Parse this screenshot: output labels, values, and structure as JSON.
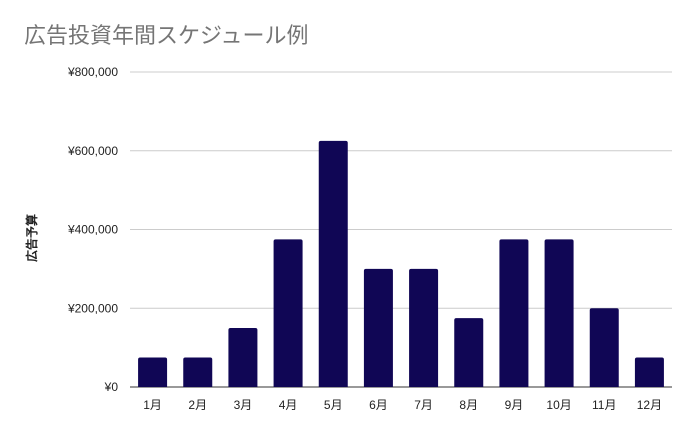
{
  "chart_data": {
    "type": "bar",
    "title": "広告投資年間スケジュール例",
    "xlabel": "",
    "ylabel": "広告予算",
    "categories": [
      "1月",
      "2月",
      "3月",
      "4月",
      "5月",
      "6月",
      "7月",
      "8月",
      "9月",
      "10月",
      "11月",
      "12月"
    ],
    "values": [
      75000,
      75000,
      150000,
      375000,
      625000,
      300000,
      300000,
      175000,
      375000,
      375000,
      200000,
      75000
    ],
    "ylim": [
      0,
      800000
    ],
    "yticks": [
      {
        "value": 0,
        "label": "¥0"
      },
      {
        "value": 200000,
        "label": "¥200,000"
      },
      {
        "value": 400000,
        "label": "¥400,000"
      },
      {
        "value": 600000,
        "label": "¥600,000"
      },
      {
        "value": 800000,
        "label": "¥800,000"
      }
    ],
    "bar_color": "#100655",
    "grid": true,
    "legend": "none"
  }
}
